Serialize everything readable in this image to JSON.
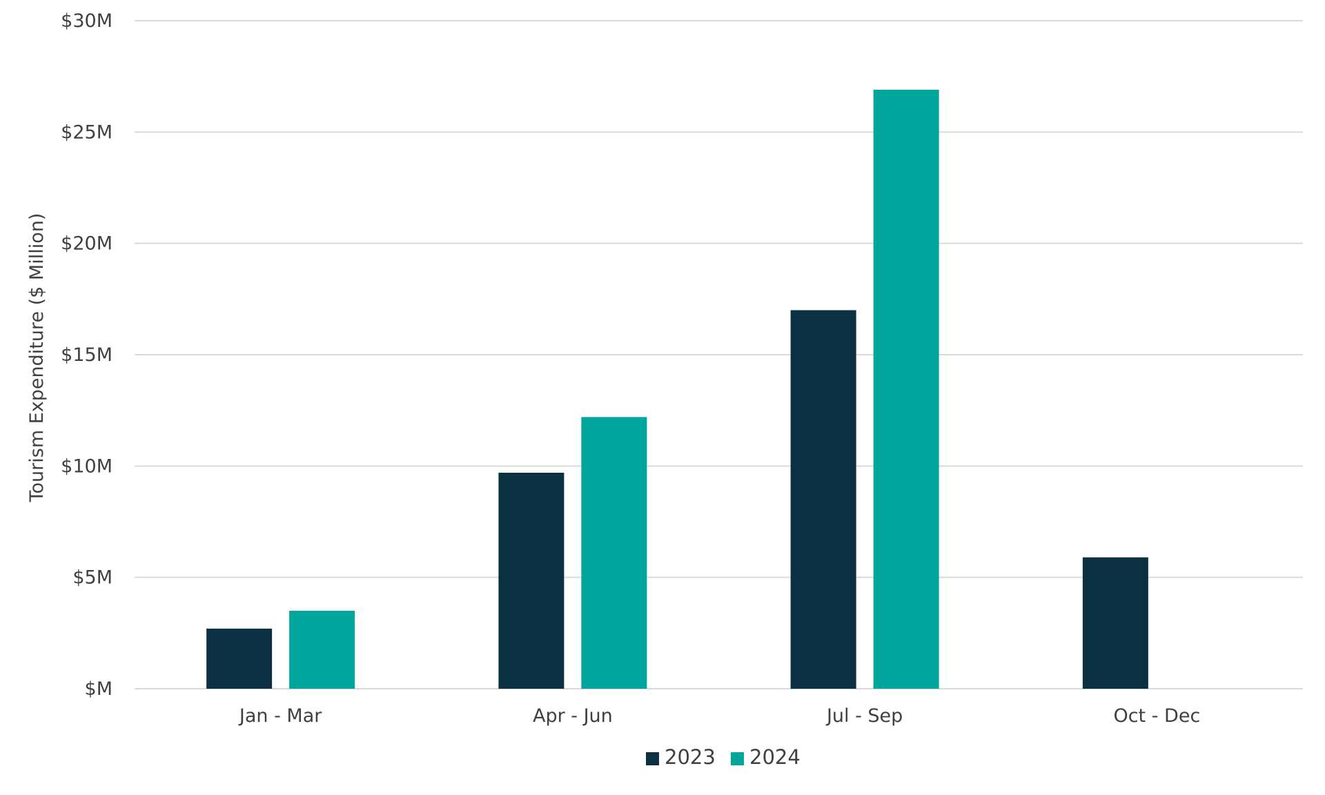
{
  "chart_data": {
    "type": "bar",
    "title": "",
    "xlabel": "",
    "ylabel": "Tourism Expenditure ($ Million)",
    "categories": [
      "Jan - Mar",
      "Apr - Jun",
      "Jul - Sep",
      "Oct - Dec"
    ],
    "series": [
      {
        "name": "2023",
        "color": "#0b3042",
        "values": [
          2.7,
          9.7,
          17.0,
          5.9
        ]
      },
      {
        "name": "2024",
        "color": "#00a59b",
        "values": [
          3.5,
          12.2,
          26.9,
          null
        ]
      }
    ],
    "ylim": [
      0,
      30
    ],
    "yticks": [
      0,
      5,
      10,
      15,
      20,
      25,
      30
    ],
    "ytick_labels": [
      "$M",
      "$5M",
      "$10M",
      "$15M",
      "$20M",
      "$25M",
      "$30M"
    ],
    "grid": true,
    "legend_position": "bottom"
  }
}
